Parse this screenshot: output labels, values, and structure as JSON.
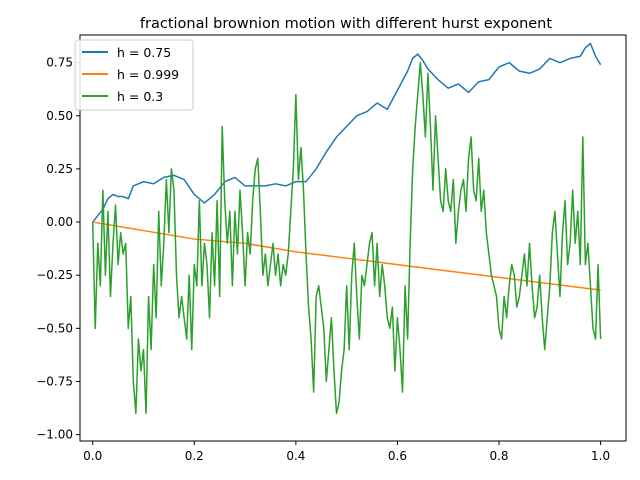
{
  "chart_data": {
    "type": "line",
    "title": "fractional brownion motion with different hurst exponent",
    "xlabel": "",
    "ylabel": "",
    "xlim": [
      -0.025,
      1.05
    ],
    "ylim": [
      -1.03,
      0.88
    ],
    "xticks": [
      0.0,
      0.2,
      0.4,
      0.6,
      0.8,
      1.0
    ],
    "xtick_labels": [
      "0.0",
      "0.2",
      "0.4",
      "0.6",
      "0.8",
      "1.0"
    ],
    "yticks": [
      -1.0,
      -0.75,
      -0.5,
      -0.25,
      0.0,
      0.25,
      0.5,
      0.75
    ],
    "ytick_labels": [
      "−1.00",
      "−0.75",
      "−0.50",
      "−0.25",
      "0.00",
      "0.25",
      "0.50",
      "0.75"
    ],
    "grid": false,
    "legend_position": "top-left",
    "series": [
      {
        "name": "h = 0.75",
        "color": "#1f77b4",
        "x": [
          0.0,
          0.01,
          0.02,
          0.03,
          0.04,
          0.05,
          0.06,
          0.07,
          0.08,
          0.09,
          0.1,
          0.12,
          0.14,
          0.16,
          0.18,
          0.2,
          0.22,
          0.24,
          0.26,
          0.28,
          0.3,
          0.32,
          0.34,
          0.36,
          0.38,
          0.4,
          0.42,
          0.44,
          0.46,
          0.48,
          0.5,
          0.52,
          0.54,
          0.56,
          0.58,
          0.6,
          0.62,
          0.63,
          0.64,
          0.65,
          0.66,
          0.68,
          0.7,
          0.72,
          0.74,
          0.76,
          0.78,
          0.8,
          0.82,
          0.84,
          0.86,
          0.88,
          0.9,
          0.92,
          0.94,
          0.96,
          0.97,
          0.98,
          0.99,
          1.0
        ],
        "y": [
          0.0,
          0.03,
          0.06,
          0.11,
          0.13,
          0.12,
          0.12,
          0.11,
          0.17,
          0.18,
          0.19,
          0.18,
          0.21,
          0.22,
          0.2,
          0.13,
          0.09,
          0.13,
          0.19,
          0.21,
          0.17,
          0.17,
          0.17,
          0.18,
          0.17,
          0.19,
          0.19,
          0.25,
          0.33,
          0.4,
          0.45,
          0.5,
          0.52,
          0.56,
          0.53,
          0.62,
          0.71,
          0.77,
          0.79,
          0.76,
          0.72,
          0.67,
          0.63,
          0.65,
          0.61,
          0.66,
          0.67,
          0.73,
          0.75,
          0.71,
          0.7,
          0.72,
          0.77,
          0.75,
          0.77,
          0.78,
          0.82,
          0.84,
          0.78,
          0.74
        ]
      },
      {
        "name": "h = 0.999",
        "color": "#ff7f0e",
        "x": [
          0.0,
          0.1,
          0.2,
          0.3,
          0.4,
          0.5,
          0.6,
          0.7,
          0.8,
          0.9,
          1.0
        ],
        "y": [
          0.0,
          -0.04,
          -0.08,
          -0.1,
          -0.14,
          -0.17,
          -0.2,
          -0.23,
          -0.26,
          -0.29,
          -0.32
        ]
      },
      {
        "name": "h = 0.3",
        "color": "#2ca02c",
        "x": [
          0.0,
          0.005,
          0.01,
          0.015,
          0.02,
          0.025,
          0.03,
          0.035,
          0.04,
          0.045,
          0.05,
          0.055,
          0.06,
          0.065,
          0.07,
          0.075,
          0.08,
          0.085,
          0.09,
          0.095,
          0.1,
          0.105,
          0.11,
          0.115,
          0.12,
          0.125,
          0.13,
          0.135,
          0.14,
          0.145,
          0.15,
          0.155,
          0.16,
          0.165,
          0.17,
          0.175,
          0.18,
          0.185,
          0.19,
          0.195,
          0.2,
          0.205,
          0.21,
          0.215,
          0.22,
          0.225,
          0.23,
          0.235,
          0.24,
          0.245,
          0.25,
          0.255,
          0.26,
          0.265,
          0.27,
          0.275,
          0.28,
          0.285,
          0.29,
          0.295,
          0.3,
          0.305,
          0.31,
          0.315,
          0.32,
          0.325,
          0.33,
          0.335,
          0.34,
          0.345,
          0.35,
          0.355,
          0.36,
          0.365,
          0.37,
          0.375,
          0.38,
          0.385,
          0.39,
          0.395,
          0.4,
          0.405,
          0.41,
          0.415,
          0.42,
          0.425,
          0.43,
          0.435,
          0.44,
          0.445,
          0.45,
          0.455,
          0.46,
          0.465,
          0.47,
          0.475,
          0.48,
          0.485,
          0.49,
          0.495,
          0.5,
          0.505,
          0.51,
          0.515,
          0.52,
          0.525,
          0.53,
          0.535,
          0.54,
          0.545,
          0.55,
          0.555,
          0.56,
          0.565,
          0.57,
          0.575,
          0.58,
          0.585,
          0.59,
          0.595,
          0.6,
          0.605,
          0.61,
          0.615,
          0.62,
          0.625,
          0.63,
          0.635,
          0.64,
          0.645,
          0.65,
          0.655,
          0.66,
          0.665,
          0.67,
          0.675,
          0.68,
          0.685,
          0.69,
          0.695,
          0.7,
          0.705,
          0.71,
          0.715,
          0.72,
          0.725,
          0.73,
          0.735,
          0.74,
          0.745,
          0.75,
          0.755,
          0.76,
          0.765,
          0.77,
          0.775,
          0.78,
          0.785,
          0.79,
          0.795,
          0.8,
          0.805,
          0.81,
          0.815,
          0.82,
          0.825,
          0.83,
          0.835,
          0.84,
          0.845,
          0.85,
          0.855,
          0.86,
          0.865,
          0.87,
          0.875,
          0.88,
          0.885,
          0.89,
          0.895,
          0.9,
          0.905,
          0.91,
          0.915,
          0.92,
          0.925,
          0.93,
          0.935,
          0.94,
          0.945,
          0.95,
          0.955,
          0.96,
          0.965,
          0.97,
          0.975,
          0.98,
          0.985,
          0.99,
          0.995,
          1.0
        ],
        "y": [
          0.0,
          -0.5,
          -0.1,
          -0.3,
          0.15,
          -0.25,
          0.05,
          -0.35,
          -0.1,
          0.08,
          -0.2,
          -0.05,
          -0.15,
          -0.1,
          -0.5,
          -0.35,
          -0.75,
          -0.9,
          -0.55,
          -0.7,
          -0.6,
          -0.9,
          -0.35,
          -0.6,
          -0.2,
          -0.45,
          0.05,
          -0.3,
          -0.1,
          0.2,
          -0.05,
          0.25,
          0.15,
          -0.25,
          -0.45,
          -0.35,
          -0.45,
          -0.55,
          -0.25,
          -0.6,
          -0.2,
          -0.3,
          0.1,
          -0.3,
          -0.1,
          -0.2,
          -0.45,
          -0.05,
          -0.3,
          0.1,
          -0.35,
          0.45,
          0.1,
          -0.1,
          0.05,
          -0.3,
          0.05,
          -0.15,
          0.15,
          -0.05,
          -0.3,
          -0.05,
          -0.15,
          0.1,
          0.25,
          0.3,
          0.05,
          -0.25,
          -0.15,
          -0.3,
          -0.2,
          -0.1,
          -0.25,
          -0.15,
          -0.3,
          -0.2,
          -0.25,
          -0.15,
          0.05,
          0.25,
          0.6,
          0.2,
          0.35,
          0.15,
          -0.15,
          -0.4,
          -0.55,
          -0.8,
          -0.35,
          -0.3,
          -0.4,
          -0.5,
          -0.75,
          -0.6,
          -0.45,
          -0.7,
          -0.9,
          -0.85,
          -0.7,
          -0.6,
          -0.3,
          -0.6,
          -0.25,
          -0.1,
          -0.35,
          -0.55,
          -0.25,
          -0.3,
          -0.2,
          -0.1,
          -0.05,
          -0.3,
          -0.1,
          -0.35,
          -0.2,
          -0.3,
          -0.45,
          -0.5,
          -0.4,
          -0.7,
          -0.45,
          -0.6,
          -0.8,
          -0.3,
          -0.55,
          -0.1,
          0.25,
          0.45,
          0.6,
          0.75,
          0.6,
          0.4,
          0.7,
          0.45,
          0.15,
          0.5,
          0.3,
          0.1,
          0.05,
          0.25,
          0.1,
          0.05,
          0.2,
          -0.1,
          0.05,
          0.15,
          0.2,
          0.05,
          0.3,
          0.4,
          0.15,
          0.1,
          0.3,
          0.05,
          0.15,
          -0.05,
          -0.15,
          -0.25,
          -0.3,
          -0.35,
          -0.5,
          -0.55,
          -0.35,
          -0.45,
          -0.3,
          -0.2,
          -0.25,
          -0.4,
          -0.35,
          -0.25,
          -0.15,
          -0.3,
          -0.1,
          -0.3,
          -0.45,
          -0.4,
          -0.25,
          -0.45,
          -0.6,
          -0.45,
          -0.3,
          -0.05,
          0.05,
          -0.15,
          -0.35,
          -0.05,
          0.1,
          -0.2,
          -0.1,
          0.15,
          -0.1,
          0.05,
          -0.2,
          0.4,
          -0.2,
          -0.1,
          -0.3,
          -0.5,
          -0.55,
          -0.2,
          -0.55
        ]
      }
    ]
  }
}
